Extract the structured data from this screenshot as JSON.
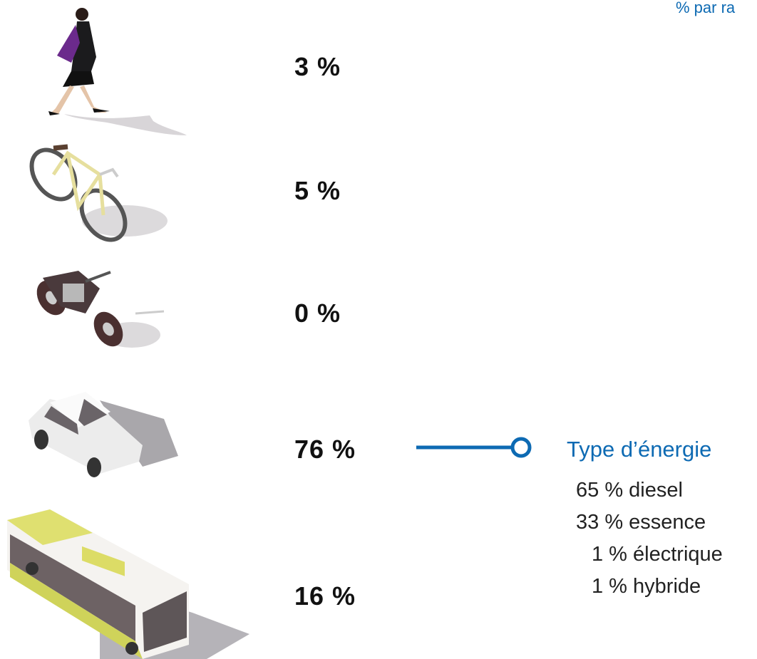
{
  "header": {
    "title": "% par ra"
  },
  "modes": [
    {
      "label": "3 %"
    },
    {
      "label": "5 %"
    },
    {
      "label": "0 %"
    },
    {
      "label": "76 %"
    },
    {
      "label": "16 %"
    }
  ],
  "energy": {
    "title": "Type d’énergie",
    "items": [
      "65 % diesel",
      "33 % essence",
      "1 % électrique",
      "1 % hybride"
    ]
  }
}
